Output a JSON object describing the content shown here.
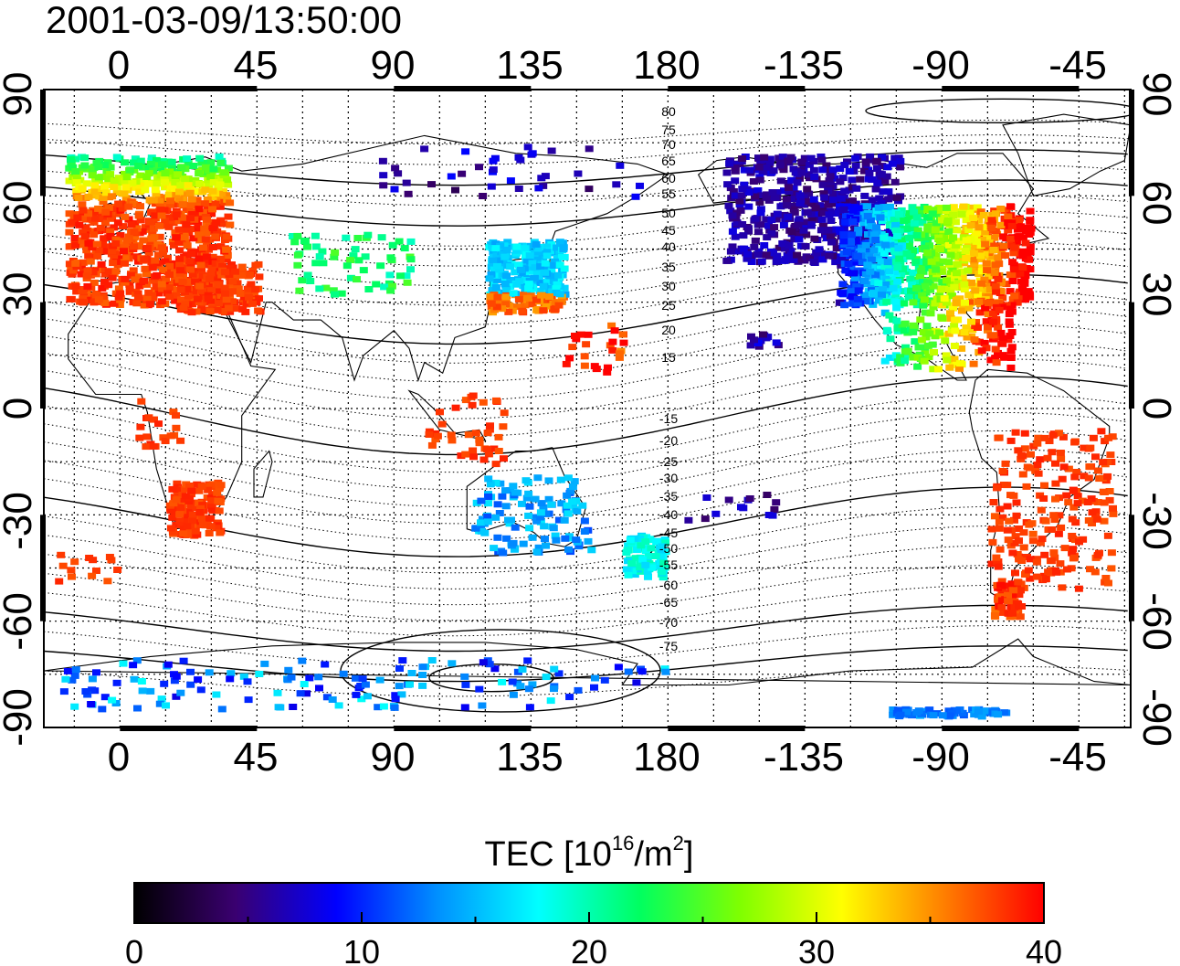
{
  "title": "2001-03-09/13:50:00",
  "map": {
    "top_ticks": [
      "0",
      "45",
      "90",
      "135",
      "180",
      "-135",
      "-90",
      "-45"
    ],
    "bottom_ticks": [
      "0",
      "45",
      "90",
      "135",
      "180",
      "-135",
      "-90",
      "-45"
    ],
    "left_ticks": [
      "90",
      "60",
      "30",
      "0",
      "-30",
      "-60",
      "-90"
    ],
    "right_ticks": [
      "90",
      "60",
      "30",
      "0",
      "-30",
      "-60",
      "-90"
    ],
    "contour_labels": [
      "80",
      "75",
      "70",
      "65",
      "60",
      "55",
      "50",
      "45",
      "40",
      "35",
      "30",
      "25",
      "20",
      "15",
      "-15",
      "-20",
      "-25",
      "-30",
      "-35",
      "-40",
      "-45",
      "-50",
      "-55",
      "-60",
      "-65",
      "-70",
      "-75"
    ],
    "grid": true
  },
  "colorbar": {
    "label_main": "TEC  [10",
    "label_exp1": "16",
    "label_mid": "/m",
    "label_exp2": "2",
    "label_end": "]",
    "ticks": [
      "0",
      "10",
      "20",
      "30",
      "40"
    ],
    "min": 0,
    "max": 40,
    "stops": [
      "#000000",
      "#3a0070",
      "#0000ff",
      "#0090ff",
      "#00ffff",
      "#00ff60",
      "#80ff00",
      "#ffff00",
      "#ff8000",
      "#ff0000"
    ]
  },
  "tec_regions": [
    {
      "name": "europe",
      "value": 38
    },
    {
      "name": "north-america-west",
      "value": 6
    },
    {
      "name": "north-america-east",
      "value": 22
    },
    {
      "name": "japan",
      "value": 16
    },
    {
      "name": "south-america",
      "value": 38
    },
    {
      "name": "south-africa",
      "value": 38
    },
    {
      "name": "australia",
      "value": 14
    },
    {
      "name": "new-zealand",
      "value": 18
    },
    {
      "name": "antarctica",
      "value": 13
    }
  ]
}
